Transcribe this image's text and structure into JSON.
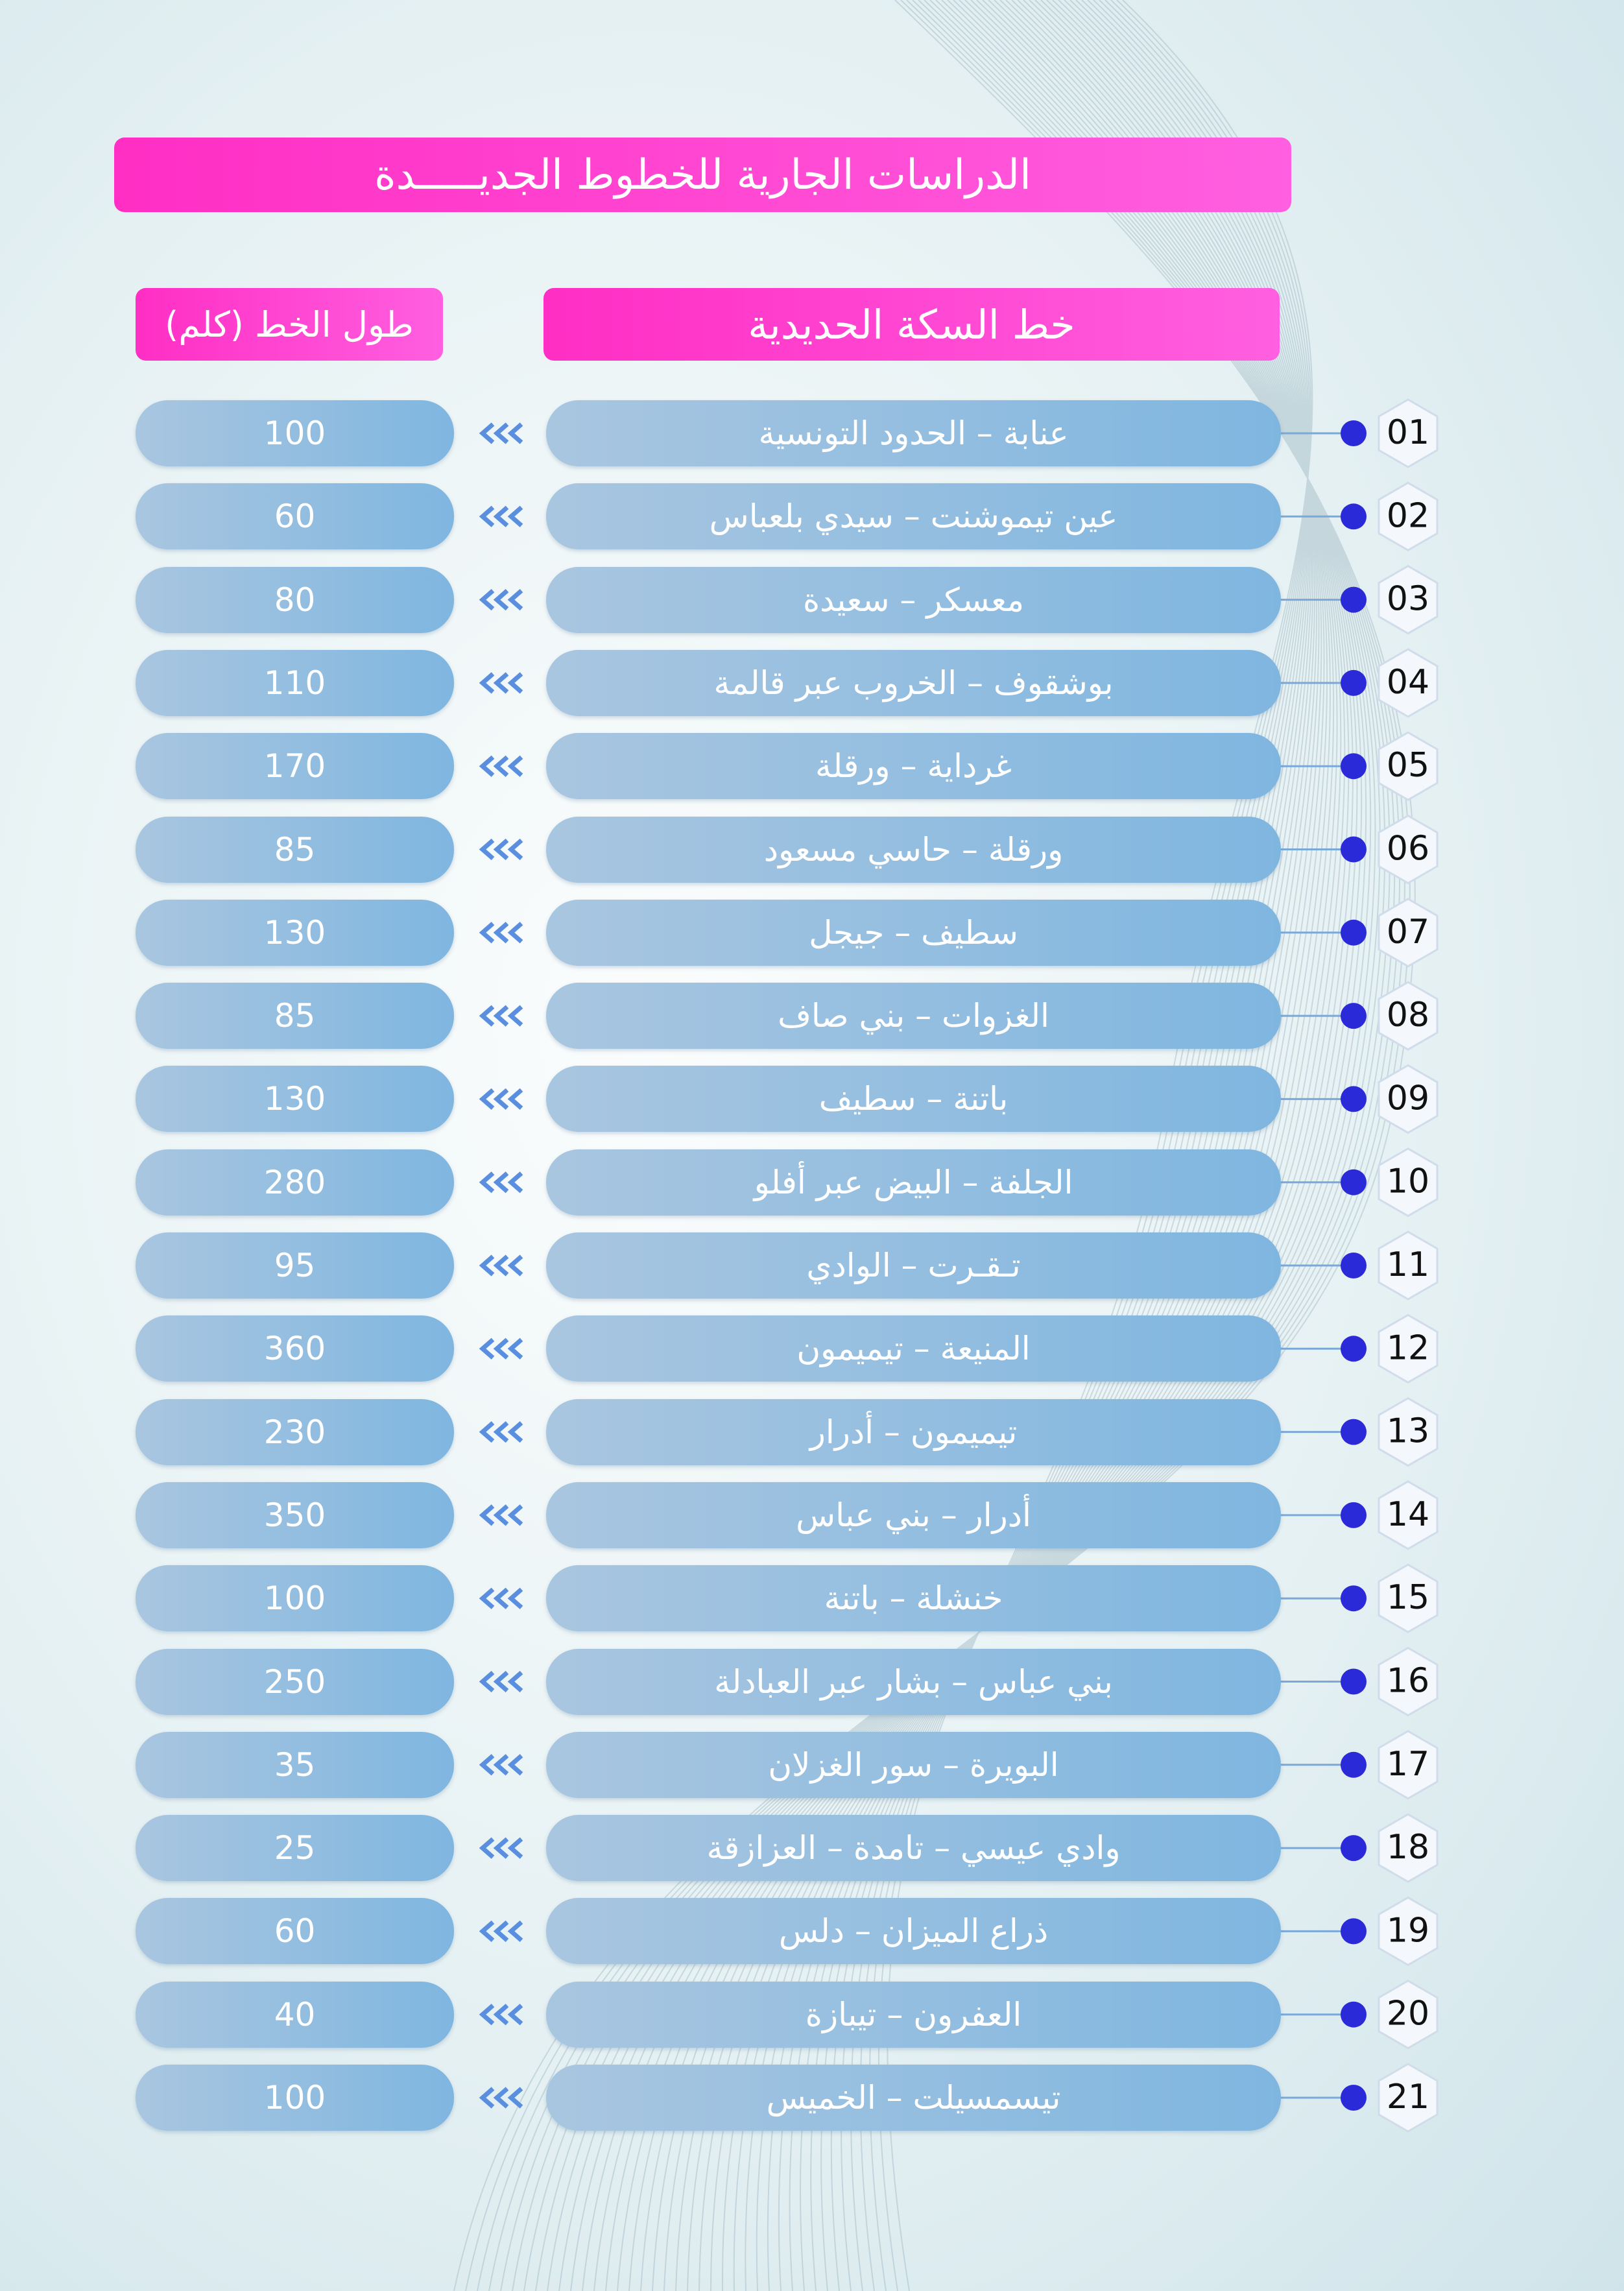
{
  "header": {
    "title": "الدراسات الجارية للخطوط الجديـــــدة"
  },
  "table": {
    "columns": [
      "خط السكة الحديدية",
      "طول الخط (كلم)"
    ],
    "rows": [
      [
        "01",
        "عنابة – الحدود التونسية",
        100
      ],
      [
        "02",
        "عين تيموشنت – سيدي بلعباس",
        60
      ],
      [
        "03",
        "معسكر – سعيدة",
        80
      ],
      [
        "04",
        "بوشقوف – الخروب عبر قالمة",
        110
      ],
      [
        "05",
        "غرداية – ورقلة",
        170
      ],
      [
        "06",
        "ورقلة – حاسي مسعود",
        85
      ],
      [
        "07",
        "سطيف – جيجل",
        130
      ],
      [
        "08",
        "الغزوات – بني صاف",
        85
      ],
      [
        "09",
        "باتنة – سطيف",
        130
      ],
      [
        "10",
        "الجلفة – البيض عبر أفلو",
        280
      ],
      [
        "11",
        "تـقـرت – الوادي",
        95
      ],
      [
        "12",
        "المنيعة – تيميمون",
        360
      ],
      [
        "13",
        "تيميمون – أدرار",
        230
      ],
      [
        "14",
        "أدرار – بني عباس",
        350
      ],
      [
        "15",
        "خنشلة – باتنة",
        100
      ],
      [
        "16",
        "بني عباس – بشار عبر العبادلة",
        250
      ],
      [
        "17",
        "البويرة – سور الغزلان",
        35
      ],
      [
        "18",
        "وادي عيسي – تامدة – العزازقة",
        25
      ],
      [
        "19",
        "ذراع الميزان – دلس",
        60
      ],
      [
        "20",
        "العفرون – تيبازة",
        40
      ],
      [
        "21",
        "تيسمسيلت – الخميس",
        100
      ]
    ]
  }
}
